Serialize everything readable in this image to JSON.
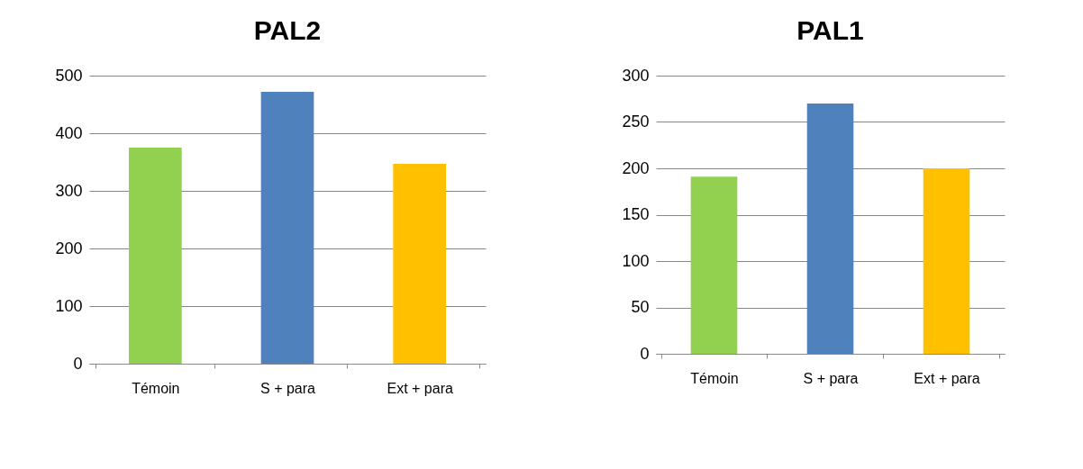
{
  "chart_data": [
    {
      "type": "bar",
      "title": "PAL2",
      "categories": [
        "Témoin",
        "S + para",
        "Ext + para"
      ],
      "values": [
        375,
        472,
        347
      ],
      "colors": [
        "#92d050",
        "#4f81bd",
        "#ffc000"
      ],
      "ylim": [
        0,
        500
      ],
      "yticks": [
        0,
        100,
        200,
        300,
        400,
        500
      ],
      "grid": "y"
    },
    {
      "type": "bar",
      "title": "PAL1",
      "categories": [
        "Témoin",
        "S + para",
        "Ext + para"
      ],
      "values": [
        191,
        270,
        200
      ],
      "colors": [
        "#92d050",
        "#4f81bd",
        "#ffc000"
      ],
      "ylim": [
        0,
        300
      ],
      "yticks": [
        0,
        50,
        100,
        150,
        200,
        250,
        300
      ],
      "grid": "y"
    }
  ]
}
